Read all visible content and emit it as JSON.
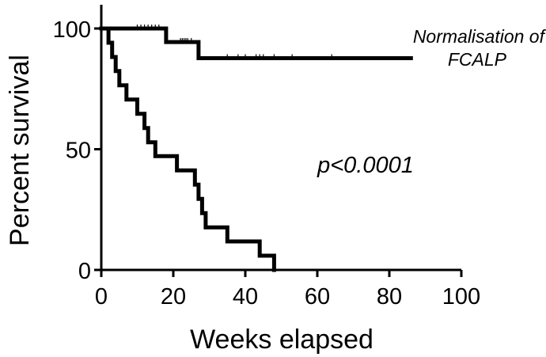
{
  "chart_data": {
    "type": "line",
    "xlabel": "Weeks elapsed",
    "ylabel": "Percent survival",
    "xlim": [
      0,
      100
    ],
    "ylim": [
      0,
      100
    ],
    "x_ticks": [
      0,
      20,
      40,
      60,
      80,
      100
    ],
    "y_ticks": [
      0,
      50,
      100
    ],
    "grid": false,
    "step_curve": true,
    "series": [
      {
        "name": "Normalisation of FCALP",
        "label_lines": [
          "Normalisation of",
          "FCALP"
        ],
        "points": [
          [
            0,
            100
          ],
          [
            18,
            100
          ],
          [
            18,
            94.4
          ],
          [
            27,
            94.4
          ],
          [
            27,
            87.7
          ],
          [
            86,
            87.7
          ]
        ],
        "censored": [
          [
            10,
            100
          ],
          [
            11,
            100
          ],
          [
            12,
            100
          ],
          [
            13,
            100
          ],
          [
            14,
            100
          ],
          [
            15,
            100
          ],
          [
            16,
            100
          ],
          [
            22,
            94.4
          ],
          [
            22.5,
            94.4
          ],
          [
            23,
            94.4
          ],
          [
            23.5,
            94.4
          ],
          [
            24,
            94.4
          ],
          [
            25,
            94.4
          ],
          [
            35,
            87.7
          ],
          [
            38,
            87.7
          ],
          [
            40,
            87.7
          ],
          [
            43,
            87.7
          ],
          [
            44,
            87.7
          ],
          [
            45,
            87.7
          ],
          [
            48,
            87.7
          ],
          [
            53,
            87.7
          ],
          [
            64,
            87.7
          ]
        ]
      },
      {
        "name": "",
        "points": [
          [
            0,
            100
          ],
          [
            2,
            100
          ],
          [
            2,
            94.1
          ],
          [
            3,
            94.1
          ],
          [
            3,
            88.2
          ],
          [
            4,
            88.2
          ],
          [
            4,
            82.4
          ],
          [
            5,
            82.4
          ],
          [
            5,
            76.5
          ],
          [
            7,
            76.5
          ],
          [
            7,
            70.6
          ],
          [
            10,
            70.6
          ],
          [
            10,
            64.7
          ],
          [
            12,
            64.7
          ],
          [
            12,
            58.8
          ],
          [
            13,
            58.8
          ],
          [
            13,
            52.9
          ],
          [
            15,
            52.9
          ],
          [
            15,
            47.1
          ],
          [
            21,
            47.1
          ],
          [
            21,
            41.2
          ],
          [
            26,
            41.2
          ],
          [
            26,
            35.3
          ],
          [
            27,
            35.3
          ],
          [
            27,
            29.4
          ],
          [
            28,
            29.4
          ],
          [
            28,
            23.5
          ],
          [
            29,
            23.5
          ],
          [
            29,
            17.6
          ],
          [
            35,
            17.6
          ],
          [
            35,
            11.8
          ],
          [
            44,
            11.8
          ],
          [
            44,
            5.9
          ],
          [
            48,
            5.9
          ],
          [
            48,
            0
          ]
        ],
        "censored": []
      }
    ],
    "annotations": [
      {
        "text": "p<0.0001"
      }
    ]
  }
}
